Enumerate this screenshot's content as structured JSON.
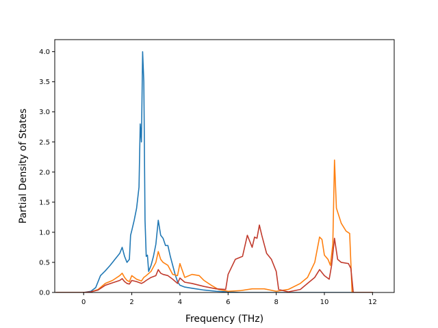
{
  "chart_data": {
    "type": "line",
    "title": "",
    "xlabel": "Frequency (THz)",
    "ylabel": "Partial Density of States",
    "xlim": [
      -1.2,
      12.9
    ],
    "ylim": [
      0.0,
      4.2
    ],
    "xticks": [
      0,
      2,
      4,
      6,
      8,
      10,
      12
    ],
    "yticks": [
      0.0,
      0.5,
      1.0,
      1.5,
      2.0,
      2.5,
      3.0,
      3.5,
      4.0
    ],
    "xtick_labels": [
      "0",
      "2",
      "4",
      "6",
      "8",
      "10",
      "12"
    ],
    "ytick_labels": [
      "0.0",
      "0.5",
      "1.0",
      "1.5",
      "2.0",
      "2.5",
      "3.0",
      "3.5",
      "4.0"
    ],
    "grid": false,
    "legend": "none",
    "series": [
      {
        "color": "#1f77b4",
        "x": [
          -1.15,
          0.0,
          0.3,
          0.5,
          0.7,
          0.9,
          1.1,
          1.3,
          1.5,
          1.6,
          1.7,
          1.8,
          1.9,
          1.95,
          2.0,
          2.1,
          2.2,
          2.3,
          2.35,
          2.4,
          2.45,
          2.5,
          2.55,
          2.6,
          2.65,
          2.7,
          2.8,
          2.9,
          3.0,
          3.1,
          3.2,
          3.3,
          3.4,
          3.5,
          3.6,
          3.7,
          3.8,
          3.9,
          4.0,
          4.2,
          4.5,
          5.0,
          5.5,
          6.0,
          6.5,
          7.0,
          8.0,
          9.0,
          10.0,
          11.0,
          11.5,
          12.0
        ],
        "values": [
          0.0,
          0.0,
          0.02,
          0.08,
          0.28,
          0.36,
          0.45,
          0.55,
          0.65,
          0.75,
          0.6,
          0.5,
          0.55,
          0.95,
          1.03,
          1.2,
          1.4,
          1.75,
          2.8,
          2.5,
          4.0,
          3.5,
          1.2,
          0.6,
          0.62,
          0.35,
          0.45,
          0.6,
          0.8,
          1.2,
          0.95,
          0.9,
          0.78,
          0.78,
          0.6,
          0.45,
          0.3,
          0.18,
          0.12,
          0.09,
          0.07,
          0.04,
          0.02,
          0.01,
          0.0,
          0.0,
          0.0,
          0.0,
          0.0,
          0.0,
          0.0,
          0.0
        ]
      },
      {
        "color": "#ff7f0e",
        "x": [
          -1.15,
          0.0,
          0.3,
          0.6,
          0.9,
          1.2,
          1.5,
          1.6,
          1.7,
          1.8,
          1.9,
          2.0,
          2.2,
          2.4,
          2.5,
          2.6,
          2.8,
          3.0,
          3.1,
          3.2,
          3.3,
          3.5,
          3.7,
          3.9,
          4.0,
          4.2,
          4.5,
          4.8,
          5.0,
          5.3,
          5.6,
          6.0,
          6.5,
          7.0,
          7.5,
          8.0,
          8.5,
          9.0,
          9.3,
          9.6,
          9.8,
          9.9,
          10.0,
          10.15,
          10.25,
          10.35,
          10.42,
          10.5,
          10.7,
          10.9,
          11.05,
          11.15,
          11.5,
          12.0
        ],
        "values": [
          0.0,
          0.0,
          0.01,
          0.05,
          0.15,
          0.2,
          0.28,
          0.32,
          0.25,
          0.2,
          0.18,
          0.28,
          0.22,
          0.19,
          0.25,
          0.28,
          0.35,
          0.5,
          0.68,
          0.55,
          0.5,
          0.45,
          0.3,
          0.28,
          0.48,
          0.25,
          0.3,
          0.28,
          0.2,
          0.12,
          0.05,
          0.02,
          0.03,
          0.06,
          0.06,
          0.02,
          0.05,
          0.15,
          0.25,
          0.5,
          0.92,
          0.88,
          0.62,
          0.55,
          0.45,
          0.8,
          2.2,
          1.4,
          1.15,
          1.02,
          0.98,
          0.0,
          0.0,
          0.0
        ]
      },
      {
        "color": "#c0392b",
        "x": [
          -1.15,
          0.0,
          0.3,
          0.6,
          0.9,
          1.2,
          1.5,
          1.6,
          1.7,
          1.8,
          1.9,
          2.0,
          2.2,
          2.4,
          2.5,
          2.6,
          2.8,
          3.0,
          3.1,
          3.2,
          3.3,
          3.5,
          3.7,
          3.9,
          4.0,
          4.2,
          4.5,
          5.0,
          5.5,
          5.9,
          6.0,
          6.3,
          6.6,
          6.8,
          6.9,
          7.0,
          7.1,
          7.2,
          7.3,
          7.4,
          7.5,
          7.6,
          7.8,
          8.0,
          8.1,
          8.5,
          9.0,
          9.3,
          9.6,
          9.8,
          10.0,
          10.2,
          10.3,
          10.42,
          10.55,
          10.7,
          11.0,
          11.1,
          11.2,
          11.5,
          12.0
        ],
        "values": [
          0.0,
          0.0,
          0.01,
          0.04,
          0.12,
          0.16,
          0.2,
          0.23,
          0.18,
          0.15,
          0.14,
          0.2,
          0.18,
          0.15,
          0.17,
          0.2,
          0.25,
          0.28,
          0.38,
          0.32,
          0.3,
          0.28,
          0.22,
          0.15,
          0.24,
          0.17,
          0.15,
          0.1,
          0.06,
          0.05,
          0.3,
          0.55,
          0.6,
          0.95,
          0.85,
          0.75,
          0.92,
          0.9,
          1.12,
          0.95,
          0.8,
          0.65,
          0.55,
          0.35,
          0.05,
          0.01,
          0.05,
          0.15,
          0.25,
          0.38,
          0.28,
          0.22,
          0.45,
          0.9,
          0.55,
          0.5,
          0.48,
          0.4,
          0.0,
          0.0,
          0.0
        ]
      }
    ]
  }
}
